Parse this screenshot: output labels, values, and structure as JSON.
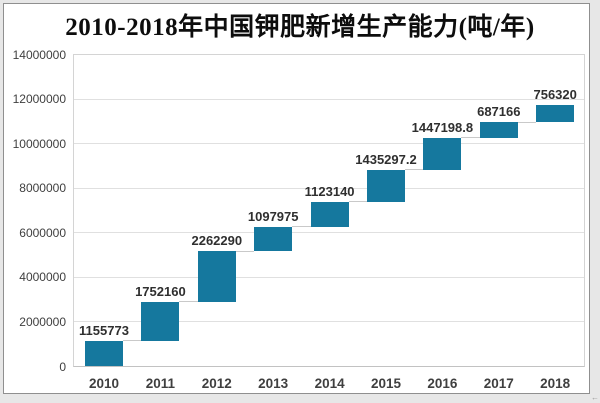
{
  "header": {
    "title": "2010-2018年中国钾肥新增生产能力(吨/年)"
  },
  "chart_data": {
    "type": "bar",
    "subtype": "waterfall",
    "title": "2010-2018年中国钾肥新增生产能力(吨/年)",
    "categories": [
      "2010",
      "2011",
      "2012",
      "2013",
      "2014",
      "2015",
      "2016",
      "2017",
      "2018"
    ],
    "values": [
      1155773,
      1752160,
      2262290,
      1097975,
      1123140,
      1435297.2,
      1447198.8,
      687166,
      756320
    ],
    "data_labels": [
      "1155773",
      "1752160",
      "2262290",
      "1097975",
      "1123140",
      "1435297.2",
      "1447198.8",
      "687166",
      "756320"
    ],
    "cumulative_totals": [
      1155773,
      2907933,
      5170223,
      6268198,
      7391338,
      8826635.2,
      10273834,
      10961000,
      11717320
    ],
    "ylim": [
      0,
      14000000
    ],
    "y_tick_step": 2000000,
    "y_tick_labels": [
      "0",
      "2000000",
      "4000000",
      "6000000",
      "8000000",
      "10000000",
      "12000000",
      "14000000"
    ],
    "xlabel": "",
    "ylabel": "",
    "grid": true,
    "legend": "none",
    "colors": {
      "bar": "#15789E",
      "gridline": "#e0e0e0",
      "connector": "#c9c9c9",
      "plot_border": "#d4d4d4",
      "axis_text": "#3f3f3f",
      "data_label_text": "#2f2f2f",
      "title_text": "#0d0d0d",
      "frame_border": "#8f8f8f",
      "outer_background": "#e7e7e7"
    },
    "corner_mark": "←"
  }
}
